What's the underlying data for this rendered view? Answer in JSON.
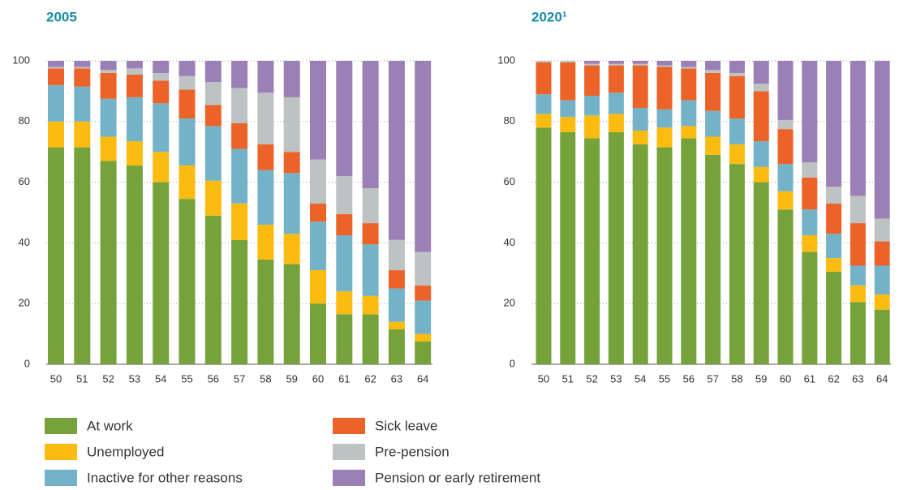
{
  "chart_data": [
    {
      "type": "bar",
      "stacked": true,
      "title": "2005",
      "categories": [
        "50",
        "51",
        "52",
        "53",
        "54",
        "55",
        "56",
        "57",
        "58",
        "59",
        "60",
        "61",
        "62",
        "63",
        "64"
      ],
      "ylim": [
        0,
        100
      ],
      "yticks": [
        0,
        20,
        40,
        60,
        80,
        100
      ],
      "grid": true,
      "series": [
        {
          "name": "At work",
          "color": "#76a23b",
          "values": [
            71.5,
            71.5,
            67,
            65.5,
            60,
            54.5,
            49,
            41,
            34.5,
            33,
            20,
            16.5,
            16.5,
            11.5,
            7.5
          ]
        },
        {
          "name": "Unemployed",
          "color": "#fbbb10",
          "values": [
            8.5,
            8.5,
            8,
            8,
            10,
            11,
            11.5,
            12,
            11.5,
            10,
            11,
            7.5,
            6,
            2.5,
            2.5
          ]
        },
        {
          "name": "Inactive for other reasons",
          "color": "#74b3c7",
          "values": [
            12,
            11.5,
            12.5,
            14.5,
            16,
            15.5,
            18,
            18,
            18,
            20,
            16,
            18.5,
            17,
            11,
            11
          ]
        },
        {
          "name": "Sick leave",
          "color": "#ec6329",
          "values": [
            5.5,
            6,
            8.5,
            7.5,
            7.5,
            9.5,
            7,
            8.5,
            8.5,
            7,
            6,
            7,
            7,
            6,
            5
          ]
        },
        {
          "name": "Pre-pension",
          "color": "#bdc3c3",
          "values": [
            0.5,
            0.5,
            1,
            2,
            2.5,
            4.5,
            7.5,
            11.5,
            17,
            18,
            14.5,
            12.5,
            11.5,
            10,
            11
          ]
        },
        {
          "name": "Pension or early retirement",
          "color": "#9a80b4",
          "values": [
            2,
            2,
            3,
            2.5,
            4,
            5,
            7,
            9,
            10.5,
            12,
            32.5,
            38,
            42,
            59,
            63
          ]
        }
      ]
    },
    {
      "type": "bar",
      "stacked": true,
      "title": "2020¹",
      "categories": [
        "50",
        "51",
        "52",
        "53",
        "54",
        "55",
        "56",
        "57",
        "58",
        "59",
        "60",
        "61",
        "62",
        "63",
        "64"
      ],
      "ylim": [
        0,
        100
      ],
      "yticks": [
        0,
        20,
        40,
        60,
        80,
        100
      ],
      "grid": true,
      "series": [
        {
          "values": [
            78,
            76.5,
            74.5,
            76.5,
            72.5,
            71.5,
            74.5,
            69,
            66,
            60,
            51,
            37,
            30.5,
            20.5,
            18
          ]
        },
        {
          "values": [
            4.5,
            5,
            7.5,
            6,
            4.5,
            6.5,
            4,
            6,
            6.5,
            5,
            6,
            5.5,
            4.5,
            5.5,
            5
          ]
        },
        {
          "values": [
            6.5,
            5.5,
            6.5,
            7,
            7.5,
            6,
            8.5,
            8.5,
            8.5,
            8.5,
            9,
            8.5,
            8,
            6.5,
            9.5
          ]
        },
        {
          "values": [
            10.5,
            12.5,
            10,
            9,
            14,
            14,
            10.5,
            12.5,
            14,
            16.5,
            11.5,
            10.5,
            10,
            14,
            8
          ]
        },
        {
          "values": [
            0.5,
            0.5,
            0.5,
            0.5,
            0.5,
            0.5,
            0.5,
            1,
            1,
            2.5,
            3,
            5,
            5.5,
            9,
            7.5
          ]
        },
        {
          "values": [
            0,
            0,
            1,
            1,
            1,
            1.5,
            2,
            3,
            4,
            7.5,
            19.5,
            33.5,
            41.5,
            44.5,
            52
          ]
        }
      ]
    }
  ]
}
